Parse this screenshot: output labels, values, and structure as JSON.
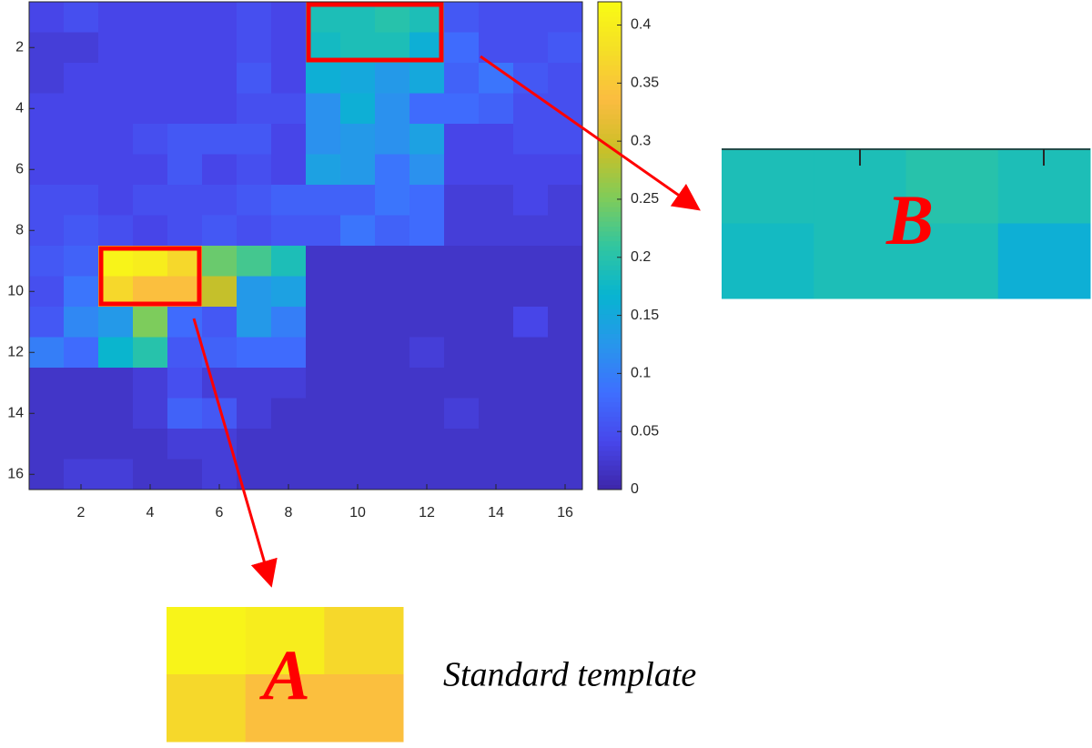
{
  "chart_data": {
    "type": "heatmap",
    "x": [
      1,
      2,
      3,
      4,
      5,
      6,
      7,
      8,
      9,
      10,
      11,
      12,
      13,
      14,
      15,
      16
    ],
    "y": [
      1,
      2,
      3,
      4,
      5,
      6,
      7,
      8,
      9,
      10,
      11,
      12,
      13,
      14,
      15,
      16
    ],
    "values": [
      [
        0.04,
        0.05,
        0.04,
        0.04,
        0.04,
        0.04,
        0.05,
        0.04,
        0.19,
        0.19,
        0.2,
        0.19,
        0.06,
        0.05,
        0.05,
        0.05
      ],
      [
        0.03,
        0.03,
        0.04,
        0.04,
        0.04,
        0.04,
        0.05,
        0.04,
        0.18,
        0.19,
        0.19,
        0.16,
        0.08,
        0.05,
        0.05,
        0.06
      ],
      [
        0.03,
        0.04,
        0.04,
        0.04,
        0.04,
        0.04,
        0.06,
        0.04,
        0.16,
        0.15,
        0.13,
        0.15,
        0.07,
        0.09,
        0.06,
        0.05
      ],
      [
        0.04,
        0.04,
        0.04,
        0.04,
        0.04,
        0.04,
        0.05,
        0.05,
        0.12,
        0.16,
        0.12,
        0.08,
        0.08,
        0.07,
        0.05,
        0.05
      ],
      [
        0.04,
        0.04,
        0.04,
        0.05,
        0.06,
        0.06,
        0.06,
        0.04,
        0.12,
        0.13,
        0.12,
        0.14,
        0.04,
        0.04,
        0.05,
        0.05
      ],
      [
        0.04,
        0.04,
        0.04,
        0.04,
        0.06,
        0.04,
        0.05,
        0.04,
        0.14,
        0.13,
        0.09,
        0.12,
        0.04,
        0.04,
        0.04,
        0.04
      ],
      [
        0.05,
        0.05,
        0.04,
        0.05,
        0.05,
        0.05,
        0.06,
        0.07,
        0.07,
        0.07,
        0.09,
        0.08,
        0.03,
        0.03,
        0.04,
        0.03
      ],
      [
        0.05,
        0.06,
        0.05,
        0.04,
        0.05,
        0.06,
        0.05,
        0.06,
        0.06,
        0.09,
        0.07,
        0.08,
        0.03,
        0.03,
        0.03,
        0.03
      ],
      [
        0.06,
        0.07,
        0.41,
        0.4,
        0.37,
        0.24,
        0.22,
        0.19,
        0.02,
        0.02,
        0.02,
        0.02,
        0.02,
        0.02,
        0.02,
        0.02
      ],
      [
        0.05,
        0.09,
        0.37,
        0.34,
        0.34,
        0.29,
        0.13,
        0.14,
        0.02,
        0.02,
        0.02,
        0.02,
        0.02,
        0.02,
        0.02,
        0.02
      ],
      [
        0.06,
        0.11,
        0.13,
        0.25,
        0.08,
        0.06,
        0.13,
        0.1,
        0.02,
        0.02,
        0.02,
        0.02,
        0.02,
        0.02,
        0.04,
        0.02
      ],
      [
        0.1,
        0.08,
        0.17,
        0.2,
        0.06,
        0.07,
        0.08,
        0.08,
        0.02,
        0.02,
        0.02,
        0.03,
        0.02,
        0.02,
        0.02,
        0.02
      ],
      [
        0.02,
        0.02,
        0.02,
        0.03,
        0.05,
        0.03,
        0.03,
        0.03,
        0.02,
        0.02,
        0.02,
        0.02,
        0.02,
        0.02,
        0.02,
        0.02
      ],
      [
        0.02,
        0.02,
        0.02,
        0.03,
        0.07,
        0.06,
        0.03,
        0.02,
        0.02,
        0.02,
        0.02,
        0.02,
        0.03,
        0.02,
        0.02,
        0.02
      ],
      [
        0.02,
        0.02,
        0.02,
        0.02,
        0.03,
        0.03,
        0.02,
        0.02,
        0.02,
        0.02,
        0.02,
        0.02,
        0.02,
        0.02,
        0.02,
        0.02
      ],
      [
        0.02,
        0.03,
        0.03,
        0.02,
        0.02,
        0.03,
        0.02,
        0.02,
        0.02,
        0.02,
        0.02,
        0.02,
        0.02,
        0.02,
        0.02,
        0.02
      ]
    ],
    "xlim": [
      0.5,
      16.5
    ],
    "ylim": [
      16.5,
      0.5
    ],
    "xticks": [
      2,
      4,
      6,
      8,
      10,
      12,
      14,
      16
    ],
    "yticks": [
      2,
      4,
      6,
      8,
      10,
      12,
      14,
      16
    ],
    "colormap": "parula",
    "clim": [
      0,
      0.42
    ],
    "cticks": [
      0,
      0.05,
      0.1,
      0.15,
      0.2,
      0.25,
      0.3,
      0.35,
      0.4
    ],
    "inset_labels": [
      "A",
      "B"
    ],
    "annotation": "Standard template"
  }
}
